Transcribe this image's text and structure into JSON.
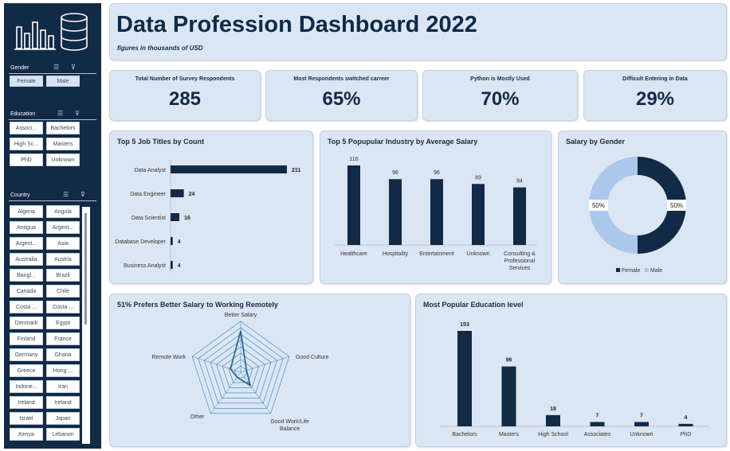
{
  "header": {
    "title": "Data Profession Dashboard 2022",
    "subtitle": "figures in thousands of USD"
  },
  "sidebar": {
    "gender": {
      "label": "Gender",
      "options": [
        "Female",
        "Male"
      ]
    },
    "education": {
      "label": "Education",
      "options": [
        "Associ...",
        "Bachelors",
        "High Sc...",
        "Masters",
        "PhD",
        "Unknown"
      ]
    },
    "country": {
      "label": "Country",
      "options": [
        "Algeria",
        "Angola",
        "Antigua",
        "Argent...",
        "Argent...",
        "Asia",
        "Australia",
        "Austria",
        "Bangl...",
        "Brazil",
        "Canada",
        "Chile",
        "Costa ...",
        "Costa ...",
        "Denmark",
        "Egypt",
        "Finland",
        "France",
        "Germany",
        "Ghana",
        "Greece",
        "Hong ...",
        "Indone...",
        "Iran",
        "Ireland",
        "Ireland",
        "Israel",
        "Japan",
        "Kenya",
        "Lebanon"
      ]
    }
  },
  "kpis": [
    {
      "label": "Total Number of Survey Respondents",
      "value": "285"
    },
    {
      "label": "Most Respondents switched carreer",
      "value": "65%"
    },
    {
      "label": "Python is Mostly Used",
      "value": "70%"
    },
    {
      "label": "Difficult Entering in Data",
      "value": "29%"
    }
  ],
  "panels": {
    "jobs": "Top 5 Job Titles by Count",
    "industry": "Top 5 Popupular Industry by Average Salary",
    "gender": "Salary by Gender",
    "remote": "51% Prefers Better Salary to Working Remotely",
    "education": "Most Popular Education level"
  },
  "chart_data": [
    {
      "type": "bar",
      "orientation": "horizontal",
      "title": "Top 5 Job Titles by Count",
      "categories": [
        "Data Analyst",
        "Data Engineer",
        "Data Scientist",
        "Database Developer",
        "Business Analyst"
      ],
      "values": [
        211,
        24,
        16,
        4,
        4
      ]
    },
    {
      "type": "bar",
      "title": "Top 5 Popupular Industry by Average Salary",
      "categories": [
        "Healthcare",
        "Hospitality",
        "Entertainment",
        "Unknown",
        "Consulting & Professional Services"
      ],
      "values": [
        116,
        96,
        96,
        89,
        84
      ]
    },
    {
      "type": "pie",
      "donut": true,
      "title": "Salary by Gender",
      "categories": [
        "Female",
        "Male"
      ],
      "values": [
        50,
        50
      ],
      "labels": [
        "50%",
        "50%"
      ],
      "colors": [
        "#112a46",
        "#a9c8eb"
      ],
      "legend": "bottom"
    },
    {
      "type": "radar",
      "title": "51% Prefers Better Salary to Working Remotely",
      "categories": [
        "Better Salary",
        "Good Culture",
        "Good Work/Life Balance",
        "Other",
        "Remote Work"
      ],
      "values": [
        0.81,
        0.12,
        0.32,
        0.12,
        0.21
      ],
      "rings": 8
    },
    {
      "type": "bar",
      "title": "Most Popular Education level",
      "categories": [
        "Bachelors",
        "Masters",
        "High School",
        "Associates",
        "Unknown",
        "PhD"
      ],
      "values": [
        153,
        96,
        18,
        7,
        7,
        4
      ]
    }
  ],
  "colors": {
    "navy": "#112a46",
    "panel": "#dbe6f4",
    "light_blue": "#a9c8eb",
    "radar": "#2f7fb4"
  },
  "icons": {
    "logo": "bar-chart-database-logo",
    "multiselect": "multi-select-icon",
    "clear_filter": "clear-filter-icon"
  }
}
